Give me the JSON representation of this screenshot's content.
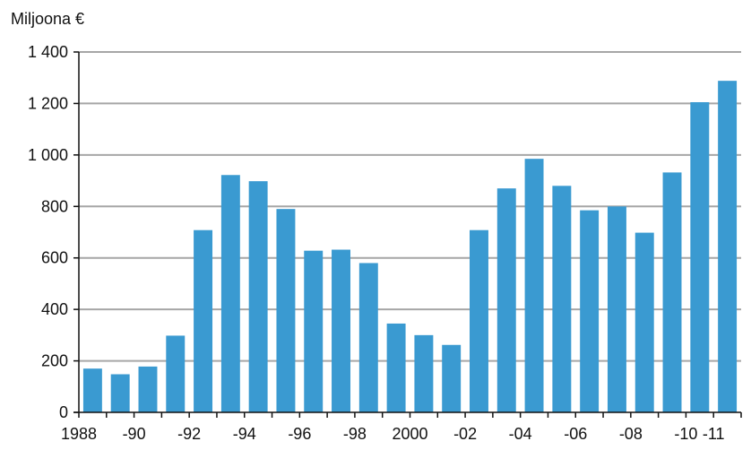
{
  "chart_data": {
    "type": "bar",
    "unit_label": "Miljoona €",
    "categories": [
      "1988",
      "1989",
      "1990",
      "1991",
      "1992",
      "1993",
      "1994",
      "1995",
      "1996",
      "1997",
      "1998",
      "1999",
      "2000",
      "2001",
      "2002",
      "2003",
      "2004",
      "2005",
      "2006",
      "2007",
      "2008",
      "2009",
      "2010",
      "2011"
    ],
    "values": [
      170,
      148,
      178,
      298,
      708,
      922,
      898,
      790,
      628,
      632,
      580,
      345,
      300,
      262,
      708,
      870,
      985,
      880,
      785,
      800,
      698,
      932,
      1205,
      1288
    ],
    "xtick_labels": [
      "1988",
      "",
      "-90",
      "",
      "-92",
      "",
      "-94",
      "",
      "-96",
      "",
      "-98",
      "",
      "2000",
      "",
      "-02",
      "",
      "-04",
      "",
      "-06",
      "",
      "-08",
      "",
      "-10",
      "-11"
    ],
    "ytick_labels": [
      "0",
      "200",
      "400",
      "600",
      "800",
      "1 000",
      "1 200",
      "1 400"
    ],
    "ytick_values": [
      0,
      200,
      400,
      600,
      800,
      1000,
      1200,
      1400
    ],
    "ylim": [
      0,
      1400
    ],
    "grid": true,
    "bar_color": "#3a9ad1",
    "grid_color": "#a6a6a6"
  }
}
